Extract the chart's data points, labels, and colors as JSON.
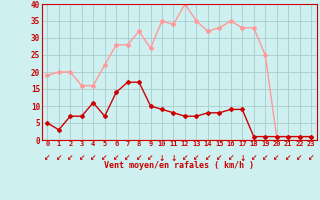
{
  "xlabel": "Vent moyen/en rafales ( km/h )",
  "bg_color": "#cff0f0",
  "grid_color": "#aadddd",
  "hours": [
    0,
    1,
    2,
    3,
    4,
    5,
    6,
    7,
    8,
    9,
    10,
    11,
    12,
    13,
    14,
    15,
    16,
    17,
    18,
    19,
    20,
    21,
    22,
    23
  ],
  "wind_avg": [
    5,
    3,
    7,
    7,
    11,
    7,
    14,
    17,
    17,
    10,
    9,
    8,
    7,
    7,
    8,
    8,
    9,
    9,
    1,
    1,
    1,
    1,
    1,
    1
  ],
  "wind_gust": [
    19,
    20,
    20,
    16,
    16,
    22,
    28,
    28,
    32,
    27,
    35,
    34,
    40,
    35,
    32,
    33,
    35,
    33,
    33,
    25,
    1,
    1,
    1,
    1
  ],
  "avg_color": "#cc0000",
  "gust_color": "#ff9999",
  "ylim": [
    0,
    40
  ],
  "yticks": [
    0,
    5,
    10,
    15,
    20,
    25,
    30,
    35,
    40
  ],
  "marker_size": 2.0,
  "line_width": 1.0,
  "arrow_chars": [
    "↙",
    "↙",
    "↙",
    "↙",
    "↙",
    "↙",
    "↙",
    "↙",
    "↙",
    "↙",
    "↓",
    "↓",
    "↙",
    "↙",
    "↙",
    "↙",
    "↙",
    "↓",
    "↙",
    "↙",
    "↙",
    "↙",
    "↙",
    "↙"
  ]
}
